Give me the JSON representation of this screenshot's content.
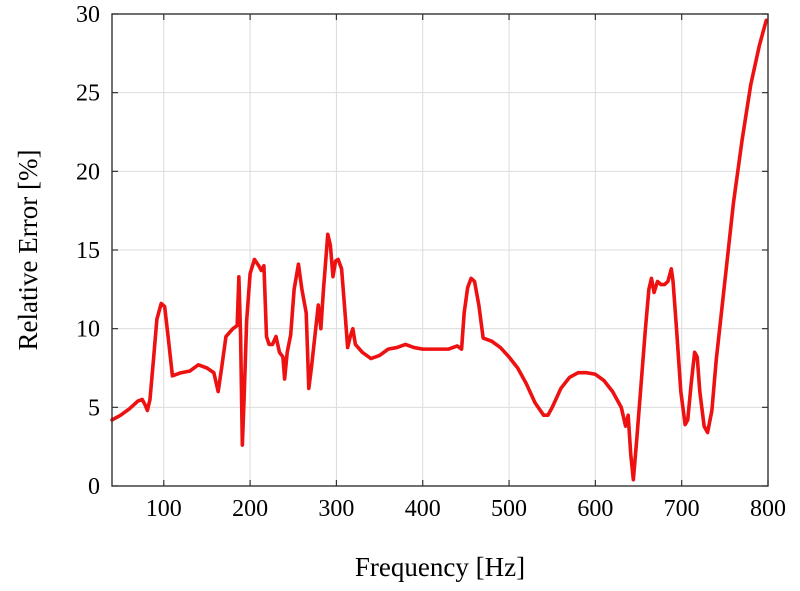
{
  "chart_data": {
    "type": "line",
    "title": "",
    "xlabel": "Frequency [Hz]",
    "ylabel": "Relative Error [%]",
    "xlim": [
      40,
      800
    ],
    "ylim": [
      0,
      30
    ],
    "x_ticks": [
      100,
      200,
      300,
      400,
      500,
      600,
      700,
      800
    ],
    "x_tick_labels": [
      "100",
      "200",
      "300",
      "400",
      "500",
      "600",
      "700",
      "800"
    ],
    "y_ticks": [
      0,
      5,
      10,
      15,
      20,
      25,
      30
    ],
    "y_tick_labels": [
      "0",
      "5",
      "10",
      "15",
      "20",
      "25",
      "30"
    ],
    "grid": true,
    "legend": "none",
    "series": [
      {
        "color": "#ee1111",
        "points": [
          [
            40,
            4.2
          ],
          [
            50,
            4.5
          ],
          [
            60,
            4.9
          ],
          [
            70,
            5.4
          ],
          [
            75,
            5.5
          ],
          [
            78,
            5.2
          ],
          [
            81,
            4.8
          ],
          [
            84,
            5.5
          ],
          [
            88,
            8.0
          ],
          [
            92,
            10.6
          ],
          [
            97,
            11.6
          ],
          [
            101,
            11.4
          ],
          [
            105,
            9.5
          ],
          [
            110,
            7.0
          ],
          [
            120,
            7.2
          ],
          [
            130,
            7.3
          ],
          [
            140,
            7.7
          ],
          [
            150,
            7.5
          ],
          [
            158,
            7.2
          ],
          [
            163,
            6.0
          ],
          [
            167,
            7.5
          ],
          [
            172,
            9.5
          ],
          [
            180,
            10.0
          ],
          [
            185,
            10.2
          ],
          [
            187,
            13.3
          ],
          [
            189,
            9.5
          ],
          [
            191,
            2.6
          ],
          [
            193,
            5.5
          ],
          [
            196,
            10.5
          ],
          [
            200,
            13.5
          ],
          [
            205,
            14.4
          ],
          [
            210,
            14.0
          ],
          [
            213,
            13.7
          ],
          [
            216,
            14.0
          ],
          [
            219,
            9.5
          ],
          [
            222,
            9.0
          ],
          [
            226,
            9.0
          ],
          [
            230,
            9.5
          ],
          [
            234,
            8.5
          ],
          [
            238,
            8.2
          ],
          [
            240,
            6.8
          ],
          [
            243,
            8.5
          ],
          [
            247,
            9.6
          ],
          [
            251,
            12.5
          ],
          [
            256,
            14.1
          ],
          [
            260,
            12.5
          ],
          [
            265,
            11.0
          ],
          [
            268,
            6.2
          ],
          [
            271,
            7.5
          ],
          [
            275,
            9.5
          ],
          [
            279,
            11.5
          ],
          [
            282,
            10.0
          ],
          [
            285,
            12.5
          ],
          [
            290,
            16.0
          ],
          [
            293,
            15.3
          ],
          [
            296,
            13.3
          ],
          [
            299,
            14.3
          ],
          [
            302,
            14.4
          ],
          [
            306,
            13.8
          ],
          [
            310,
            11.0
          ],
          [
            313,
            8.8
          ],
          [
            316,
            9.5
          ],
          [
            319,
            10.0
          ],
          [
            322,
            9.0
          ],
          [
            330,
            8.5
          ],
          [
            340,
            8.1
          ],
          [
            350,
            8.3
          ],
          [
            360,
            8.7
          ],
          [
            370,
            8.8
          ],
          [
            380,
            9.0
          ],
          [
            390,
            8.8
          ],
          [
            400,
            8.7
          ],
          [
            410,
            8.7
          ],
          [
            420,
            8.7
          ],
          [
            430,
            8.7
          ],
          [
            440,
            8.9
          ],
          [
            445,
            8.7
          ],
          [
            448,
            11.0
          ],
          [
            452,
            12.6
          ],
          [
            456,
            13.2
          ],
          [
            460,
            13.0
          ],
          [
            465,
            11.5
          ],
          [
            470,
            9.4
          ],
          [
            480,
            9.2
          ],
          [
            490,
            8.8
          ],
          [
            500,
            8.2
          ],
          [
            510,
            7.5
          ],
          [
            520,
            6.5
          ],
          [
            530,
            5.3
          ],
          [
            540,
            4.5
          ],
          [
            545,
            4.5
          ],
          [
            550,
            5.0
          ],
          [
            560,
            6.2
          ],
          [
            570,
            6.9
          ],
          [
            580,
            7.2
          ],
          [
            590,
            7.2
          ],
          [
            600,
            7.1
          ],
          [
            610,
            6.7
          ],
          [
            620,
            6.0
          ],
          [
            630,
            5.0
          ],
          [
            635,
            3.8
          ],
          [
            638,
            4.5
          ],
          [
            641,
            2.0
          ],
          [
            644,
            0.4
          ],
          [
            648,
            3.0
          ],
          [
            653,
            6.5
          ],
          [
            658,
            10.0
          ],
          [
            662,
            12.5
          ],
          [
            665,
            13.2
          ],
          [
            668,
            12.3
          ],
          [
            672,
            13.0
          ],
          [
            676,
            12.8
          ],
          [
            680,
            12.8
          ],
          [
            684,
            13.0
          ],
          [
            688,
            13.8
          ],
          [
            690,
            13.0
          ],
          [
            694,
            10.0
          ],
          [
            699,
            6.0
          ],
          [
            704,
            3.9
          ],
          [
            707,
            4.2
          ],
          [
            711,
            6.5
          ],
          [
            715,
            8.5
          ],
          [
            718,
            8.2
          ],
          [
            721,
            6.0
          ],
          [
            726,
            3.8
          ],
          [
            730,
            3.4
          ],
          [
            735,
            4.8
          ],
          [
            740,
            8.0
          ],
          [
            750,
            13.0
          ],
          [
            760,
            18.0
          ],
          [
            770,
            22.0
          ],
          [
            780,
            25.5
          ],
          [
            790,
            28.0
          ],
          [
            798,
            29.6
          ]
        ]
      }
    ]
  }
}
